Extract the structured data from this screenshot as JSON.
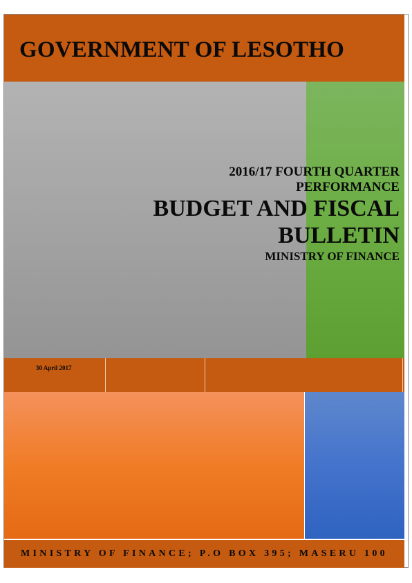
{
  "header": {
    "title": "GOVERNMENT OF LESOTHO"
  },
  "cover": {
    "subtitle_line1": "2016/17 FOURTH QUARTER",
    "subtitle_line2": "PERFORMANCE",
    "main_title_line1": "BUDGET AND FISCAL",
    "main_title_line2": "BULLETIN",
    "ministry": "MINISTRY OF FINANCE"
  },
  "date_row": {
    "date": "30 April 2017"
  },
  "footer": {
    "address": "MINISTRY OF FINANCE; P.O BOX 395; MASERU 100"
  },
  "colors": {
    "header_orange": "#c55a11",
    "grey": "#a4a4a4",
    "green": "#6cae44",
    "orange": "#f07c26",
    "blue": "#4473cc"
  }
}
